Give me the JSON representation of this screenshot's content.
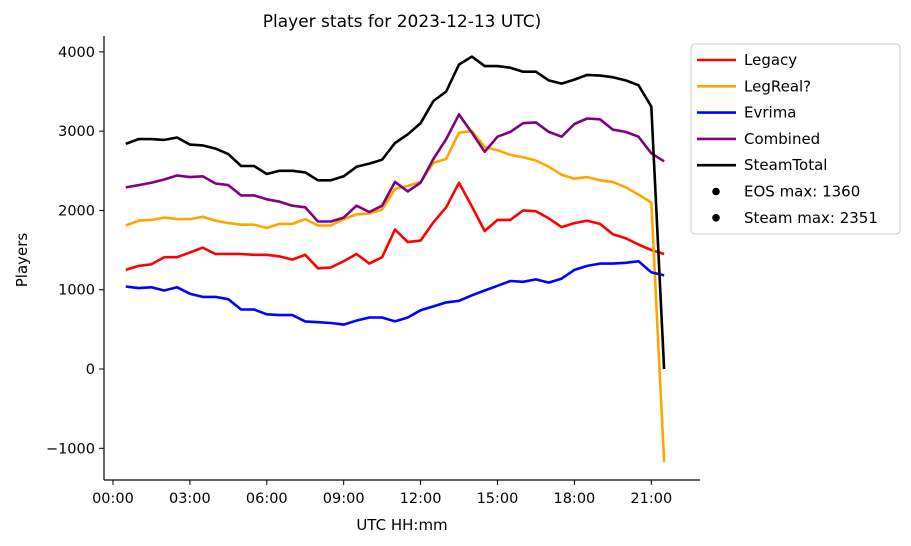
{
  "chart_data": {
    "type": "line",
    "title": "Player stats for 2023-12-13 UTC)",
    "xlabel": "UTC HH:mm",
    "ylabel": "Players",
    "xlim": [
      -0.35,
      22.9
    ],
    "ylim": [
      -1400,
      4200
    ],
    "x_ticks": [
      {
        "value": 0,
        "label": "00:00"
      },
      {
        "value": 3,
        "label": "03:00"
      },
      {
        "value": 6,
        "label": "06:00"
      },
      {
        "value": 9,
        "label": "09:00"
      },
      {
        "value": 12,
        "label": "12:00"
      },
      {
        "value": 15,
        "label": "15:00"
      },
      {
        "value": 18,
        "label": "18:00"
      },
      {
        "value": 21,
        "label": "21:00"
      }
    ],
    "y_ticks": [
      {
        "value": -1000,
        "label": "−1000"
      },
      {
        "value": 0,
        "label": "0"
      },
      {
        "value": 1000,
        "label": "1000"
      },
      {
        "value": 2000,
        "label": "2000"
      },
      {
        "value": 3000,
        "label": "3000"
      },
      {
        "value": 4000,
        "label": "4000"
      }
    ],
    "grid": false,
    "legend_position": "outside-right-top",
    "x": [
      0.5,
      1.0,
      1.5,
      2.0,
      2.5,
      3.0,
      3.5,
      4.0,
      4.5,
      5.0,
      5.5,
      6.0,
      6.5,
      7.0,
      7.5,
      8.0,
      8.5,
      9.0,
      9.5,
      10.0,
      10.5,
      11.0,
      11.5,
      12.0,
      12.5,
      13.0,
      13.5,
      14.0,
      14.5,
      15.0,
      15.5,
      16.0,
      16.5,
      17.0,
      17.5,
      18.0,
      18.5,
      19.0,
      19.5,
      20.0,
      20.5,
      21.0,
      21.5
    ],
    "series": [
      {
        "name": "Legacy",
        "color": "#ff0000",
        "values": [
          1250,
          1300,
          1320,
          1410,
          1410,
          1470,
          1530,
          1450,
          1450,
          1450,
          1440,
          1440,
          1420,
          1380,
          1440,
          1270,
          1280,
          1360,
          1450,
          1330,
          1410,
          1760,
          1600,
          1620,
          1850,
          2040,
          2350,
          2050,
          1740,
          1880,
          1880,
          2000,
          1990,
          1900,
          1790,
          1840,
          1870,
          1830,
          1700,
          1650,
          1570,
          1500,
          1450
        ]
      },
      {
        "name": "LegReal?",
        "color": "#ffa500",
        "values": [
          1810,
          1870,
          1880,
          1910,
          1890,
          1890,
          1920,
          1870,
          1840,
          1820,
          1820,
          1780,
          1830,
          1830,
          1890,
          1810,
          1810,
          1890,
          1950,
          1960,
          2010,
          2270,
          2310,
          2360,
          2600,
          2650,
          2980,
          3000,
          2800,
          2760,
          2700,
          2670,
          2630,
          2550,
          2450,
          2400,
          2420,
          2380,
          2360,
          2290,
          2200,
          2100,
          -1170
        ]
      },
      {
        "name": "Evrima",
        "color": "#0000ff",
        "values": [
          1040,
          1020,
          1030,
          990,
          1030,
          950,
          910,
          910,
          880,
          750,
          750,
          690,
          680,
          680,
          600,
          590,
          580,
          560,
          610,
          650,
          650,
          600,
          650,
          740,
          790,
          840,
          860,
          930,
          990,
          1050,
          1110,
          1100,
          1130,
          1090,
          1140,
          1250,
          1300,
          1330,
          1330,
          1340,
          1360,
          1220,
          1180
        ]
      },
      {
        "name": "Combined",
        "color": "#800080",
        "values": [
          2290,
          2320,
          2350,
          2390,
          2440,
          2420,
          2430,
          2340,
          2320,
          2190,
          2190,
          2140,
          2110,
          2060,
          2040,
          1860,
          1860,
          1910,
          2060,
          1980,
          2060,
          2360,
          2240,
          2350,
          2650,
          2900,
          3210,
          2980,
          2740,
          2930,
          2990,
          3100,
          3110,
          2990,
          2930,
          3090,
          3160,
          3150,
          3020,
          2990,
          2930,
          2720,
          2620
        ]
      },
      {
        "name": "SteamTotal",
        "color": "#000000",
        "values": [
          2840,
          2900,
          2900,
          2890,
          2920,
          2830,
          2820,
          2780,
          2710,
          2560,
          2560,
          2460,
          2500,
          2500,
          2480,
          2380,
          2380,
          2430,
          2550,
          2590,
          2640,
          2850,
          2960,
          3100,
          3380,
          3500,
          3840,
          3940,
          3820,
          3820,
          3800,
          3750,
          3750,
          3640,
          3600,
          3650,
          3710,
          3700,
          3680,
          3640,
          3580,
          3310,
          0
        ]
      }
    ],
    "annotations": [
      {
        "label": "EOS max: 1360"
      },
      {
        "label": "Steam max: 2351"
      }
    ]
  }
}
